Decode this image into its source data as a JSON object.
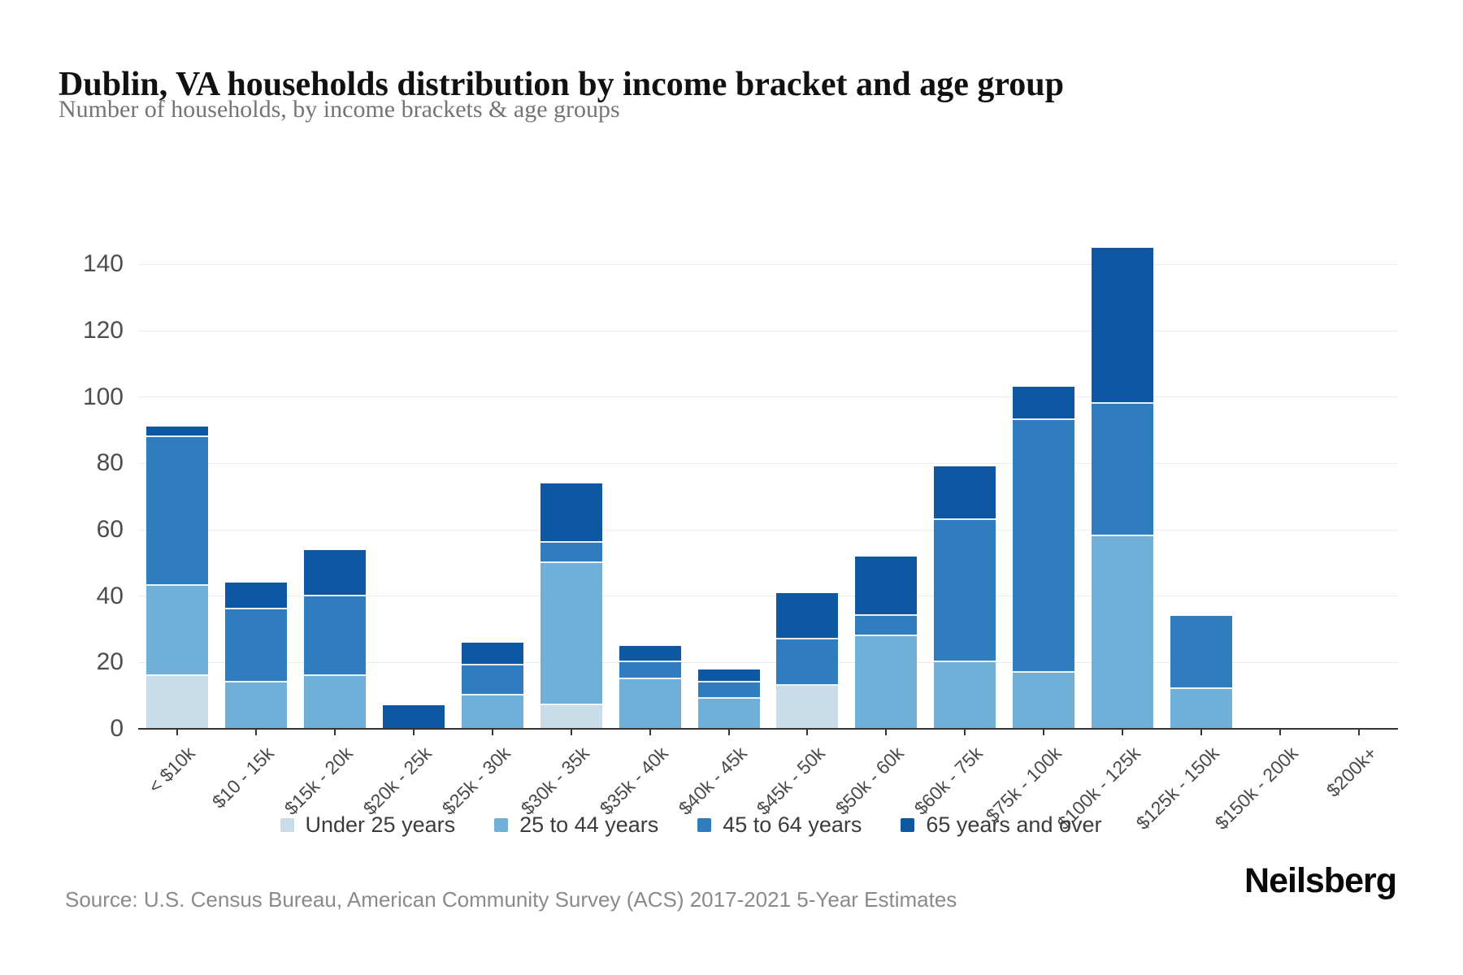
{
  "header": {
    "title": "Dublin, VA households distribution by income bracket and age group",
    "subtitle": "Number of households, by income brackets & age groups"
  },
  "source": {
    "text": "Source: U.S. Census Bureau, American Community Survey (ACS) 2017-2021 5-Year Estimates"
  },
  "branding": {
    "logo_text": "Neilsberg"
  },
  "chart_data": {
    "type": "bar",
    "stacked": true,
    "title": "Dublin, VA households distribution by income bracket and age group",
    "xlabel": "",
    "ylabel": "Number of households",
    "categories": [
      "< $10k",
      "$10 - 15k",
      "$15k - 20k",
      "$20k - 25k",
      "$25k - 30k",
      "$30k - 35k",
      "$35k - 40k",
      "$40k - 45k",
      "$45k - 50k",
      "$50k - 60k",
      "$60k - 75k",
      "$75k - 100k",
      "$100k - 125k",
      "$125k - 150k",
      "$150k - 200k",
      "$200k+"
    ],
    "series": [
      {
        "name": "Under 25 years",
        "color": "#c9dcea",
        "values": [
          16,
          0,
          0,
          0,
          0,
          7,
          0,
          0,
          13,
          0,
          0,
          0,
          0,
          0,
          0,
          0
        ]
      },
      {
        "name": "25 to 44 years",
        "color": "#6fafd8",
        "values": [
          27,
          14,
          16,
          0,
          10,
          43,
          15,
          9,
          0,
          28,
          20,
          17,
          58,
          12,
          0,
          0
        ]
      },
      {
        "name": "45 to 64 years",
        "color": "#2f7dbe",
        "values": [
          45,
          22,
          24,
          0,
          9,
          6,
          5,
          5,
          14,
          6,
          43,
          76,
          40,
          22,
          0,
          0
        ]
      },
      {
        "name": "65 years and over",
        "color": "#0d57a3",
        "values": [
          3,
          8,
          14,
          7,
          7,
          18,
          5,
          4,
          14,
          18,
          16,
          10,
          47,
          0,
          0,
          0
        ]
      }
    ],
    "totals": [
      91,
      44,
      54,
      7,
      26,
      74,
      25,
      18,
      41,
      52,
      79,
      103,
      145,
      34,
      0,
      0
    ],
    "ylim": [
      0,
      150
    ],
    "yticks": [
      0,
      20,
      40,
      60,
      80,
      100,
      120,
      140
    ],
    "grid": true,
    "legend_position": "bottom"
  }
}
